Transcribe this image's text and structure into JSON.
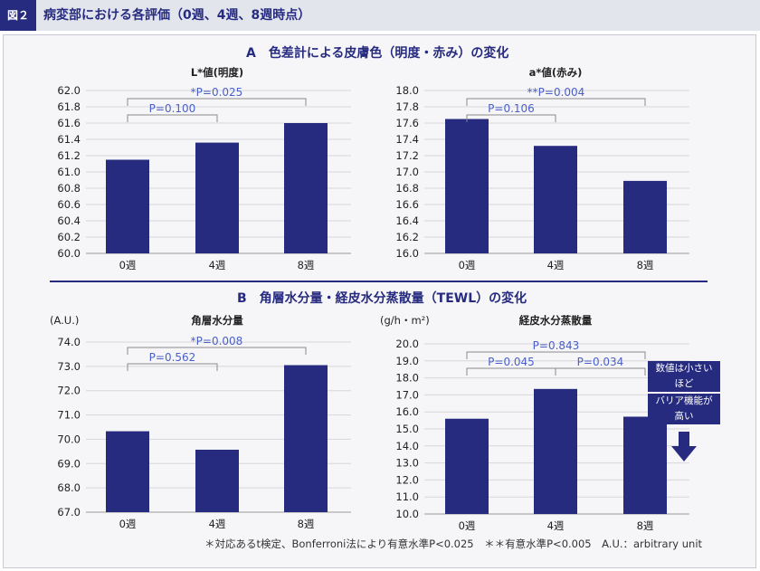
{
  "header": {
    "figure_label": "図２",
    "title": "病変部における各評価（0週、4週、8週時点）"
  },
  "sections": {
    "a_title": "A　色差計による皮膚色（明度・赤み）の変化",
    "b_title": "B　角層水分量・経皮水分蒸散量（TEWL）の変化"
  },
  "note": {
    "line1": "数値は小さいほど",
    "line2": "バリア機能が高い",
    "arrow_icon": "down-arrow-icon"
  },
  "footnote": "＊対応あるt検定、Bonferroni法により有意水準P<0.025　＊＊有意水準P<0.005　A.U.：arbitrary unit",
  "colors": {
    "bar": "#262b80",
    "sig_text": "#4a60c8",
    "bracket": "#8a8a8a",
    "grid": "#d6d6dc"
  },
  "chart_data": [
    {
      "type": "bar",
      "title": "L*値(明度)",
      "ylabel": "",
      "categories": [
        "0週",
        "4週",
        "8週"
      ],
      "values": [
        61.15,
        61.36,
        61.6
      ],
      "ylim": [
        60.0,
        62.0
      ],
      "yticks": [
        "60.0",
        "60.2",
        "60.4",
        "60.6",
        "60.8",
        "61.0",
        "61.2",
        "61.4",
        "61.6",
        "61.8",
        "62.0"
      ],
      "grid": true,
      "annotations": [
        {
          "from": 0,
          "to": 2,
          "level": 1,
          "label": "*P=0.025"
        },
        {
          "from": 0,
          "to": 1,
          "level": 0,
          "label": "P=0.100"
        }
      ]
    },
    {
      "type": "bar",
      "title": "a*値(赤み)",
      "ylabel": "",
      "categories": [
        "0週",
        "4週",
        "8週"
      ],
      "values": [
        17.65,
        17.32,
        16.89
      ],
      "ylim": [
        16.0,
        18.0
      ],
      "yticks": [
        "16.0",
        "16.2",
        "16.4",
        "16.6",
        "16.8",
        "17.0",
        "17.2",
        "17.4",
        "17.6",
        "17.8",
        "18.0"
      ],
      "grid": true,
      "annotations": [
        {
          "from": 0,
          "to": 2,
          "level": 1,
          "label": "**P=0.004"
        },
        {
          "from": 0,
          "to": 1,
          "level": 0,
          "label": "P=0.106"
        }
      ]
    },
    {
      "type": "bar",
      "title": "角層水分量",
      "ylabel": "(A.U.)",
      "categories": [
        "0週",
        "4週",
        "8週"
      ],
      "values": [
        70.33,
        69.57,
        73.05
      ],
      "ylim": [
        67.0,
        74.0
      ],
      "yticks": [
        "67.0",
        "68.0",
        "69.0",
        "70.0",
        "71.0",
        "72.0",
        "73.0",
        "74.0"
      ],
      "grid": true,
      "annotations": [
        {
          "from": 0,
          "to": 2,
          "level": 1,
          "label": "*P=0.008"
        },
        {
          "from": 0,
          "to": 1,
          "level": 0,
          "label": "P=0.562"
        }
      ]
    },
    {
      "type": "bar",
      "title": "経皮水分蒸散量",
      "ylabel": "(g/h・m²)",
      "categories": [
        "0週",
        "4週",
        "8週"
      ],
      "values": [
        15.6,
        17.35,
        15.72
      ],
      "ylim": [
        10.0,
        20.0
      ],
      "yticks": [
        "10.0",
        "11.0",
        "12.0",
        "13.0",
        "14.0",
        "15.0",
        "16.0",
        "17.0",
        "18.0",
        "19.0",
        "20.0"
      ],
      "grid": true,
      "annotations": [
        {
          "from": 0,
          "to": 2,
          "level": 1,
          "label": "P=0.843"
        },
        {
          "from": 0,
          "to": 1,
          "level": 0,
          "label": "P=0.045"
        },
        {
          "from": 1,
          "to": 2,
          "level": 0,
          "label": "P=0.034"
        }
      ]
    }
  ]
}
